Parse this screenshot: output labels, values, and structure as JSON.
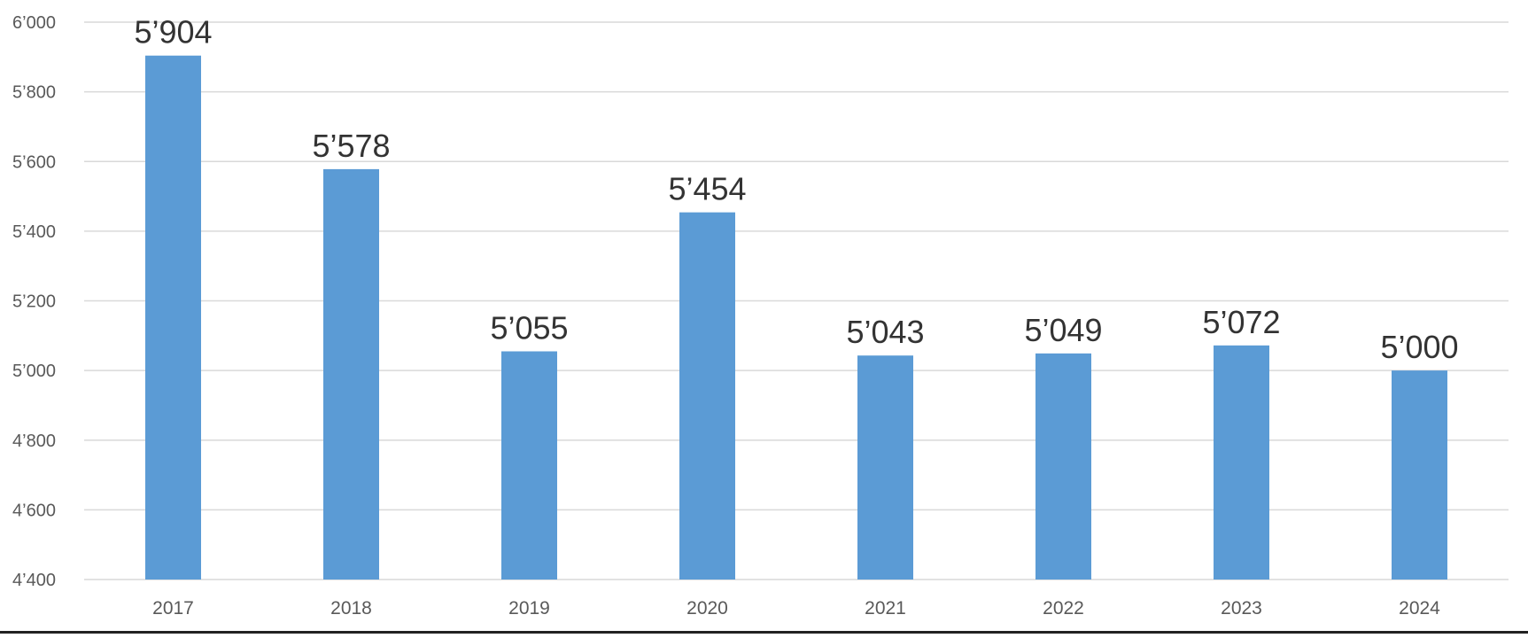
{
  "chart_data": {
    "type": "bar",
    "categories": [
      "2017",
      "2018",
      "2019",
      "2020",
      "2021",
      "2022",
      "2023",
      "2024"
    ],
    "values": [
      5904,
      5578,
      5055,
      5454,
      5043,
      5049,
      5072,
      5000
    ],
    "data_labels": [
      "5’904",
      "5’578",
      "5’055",
      "5’454",
      "5’043",
      "5’049",
      "5’072",
      "5’000"
    ],
    "y_ticks": [
      4400,
      4600,
      4800,
      5000,
      5200,
      5400,
      5600,
      5800,
      6000
    ],
    "y_tick_labels": [
      "4’400",
      "4’600",
      "4’800",
      "5’000",
      "5’200",
      "5’400",
      "5’600",
      "5’800",
      "6’000"
    ],
    "ylim": [
      4400,
      6000
    ],
    "grid": true,
    "legend": false,
    "title": "",
    "xlabel": "",
    "ylabel": "",
    "colors": {
      "bar": "#5b9bd5",
      "grid": "#d9d9d9",
      "tick_text": "#595959",
      "label_text": "#333333"
    }
  }
}
